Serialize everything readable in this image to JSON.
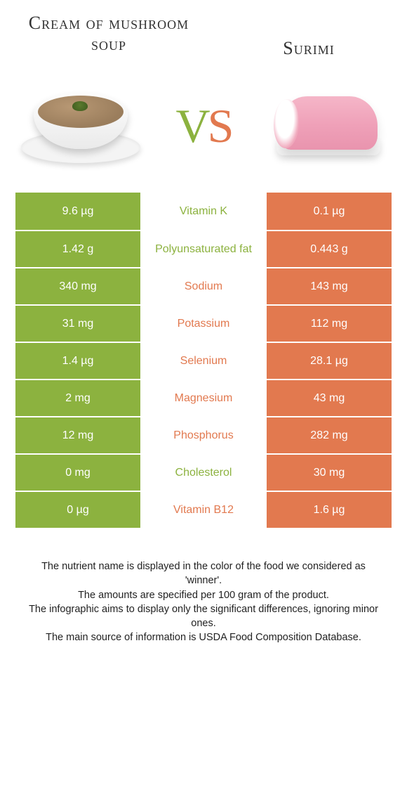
{
  "colors": {
    "left": "#8cb23f",
    "right": "#e2794f",
    "row_text_white": "#ffffff"
  },
  "header": {
    "left_title": "Cream of mushroom soup",
    "right_title": "Surimi",
    "vs_v": "V",
    "vs_s": "S"
  },
  "rows": [
    {
      "left": "9.6 µg",
      "label": "Vitamin K",
      "right": "0.1 µg",
      "winner": "left"
    },
    {
      "left": "1.42 g",
      "label": "Polyunsaturated fat",
      "right": "0.443 g",
      "winner": "left"
    },
    {
      "left": "340 mg",
      "label": "Sodium",
      "right": "143 mg",
      "winner": "right"
    },
    {
      "left": "31 mg",
      "label": "Potassium",
      "right": "112 mg",
      "winner": "right"
    },
    {
      "left": "1.4 µg",
      "label": "Selenium",
      "right": "28.1 µg",
      "winner": "right"
    },
    {
      "left": "2 mg",
      "label": "Magnesium",
      "right": "43 mg",
      "winner": "right"
    },
    {
      "left": "12 mg",
      "label": "Phosphorus",
      "right": "282 mg",
      "winner": "right"
    },
    {
      "left": "0 mg",
      "label": "Cholesterol",
      "right": "30 mg",
      "winner": "left"
    },
    {
      "left": "0 µg",
      "label": "Vitamin B12",
      "right": "1.6 µg",
      "winner": "right"
    }
  ],
  "footer": {
    "line1": "The nutrient name is displayed in the color of the food we considered as 'winner'.",
    "line2": "The amounts are specified per 100 gram of the product.",
    "line3": "The infographic aims to display only the significant differences, ignoring minor ones.",
    "line4": "The main source of information is USDA Food Composition Database."
  }
}
